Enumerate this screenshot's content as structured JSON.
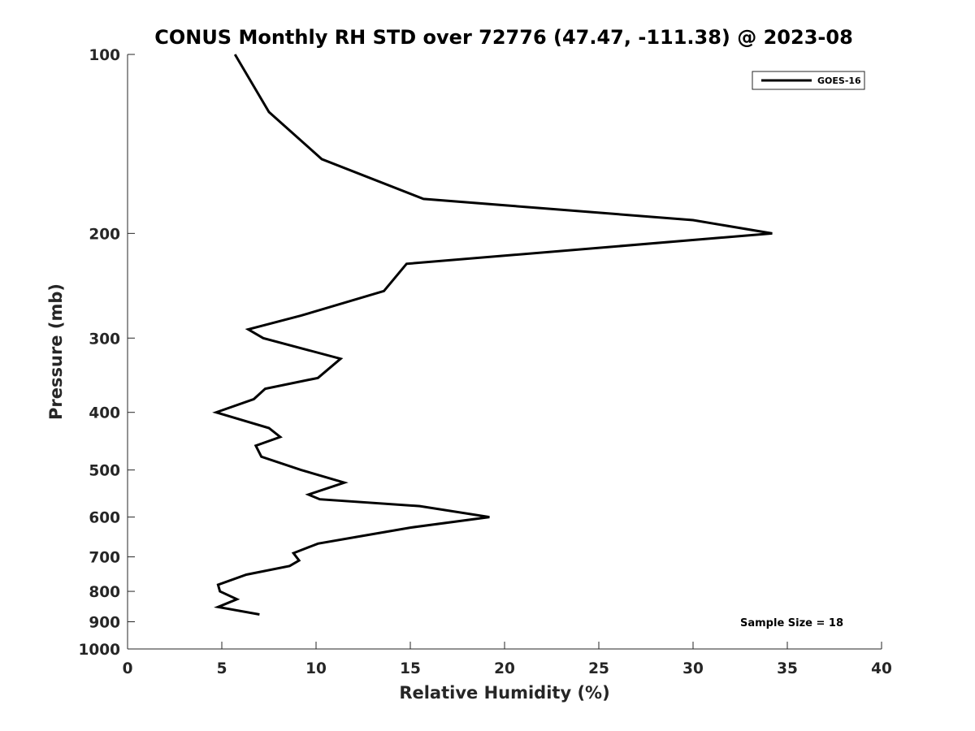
{
  "chart_data": {
    "type": "line",
    "title": "CONUS Monthly RH STD over 72776 (47.47, -111.38) @ 2023-08",
    "xlabel": "Relative Humidity (%)",
    "ylabel": "Pressure (mb)",
    "xlim": [
      0,
      40
    ],
    "ylim": [
      100,
      1000
    ],
    "yscale": "log",
    "y_reversed": true,
    "grid": false,
    "legend_position": "top-right",
    "xticks": [
      0,
      5,
      10,
      15,
      20,
      25,
      30,
      35,
      40
    ],
    "xtick_labels": [
      "0",
      "5",
      "10",
      "15",
      "20",
      "25",
      "30",
      "35",
      "40"
    ],
    "yticks": [
      100,
      200,
      300,
      400,
      500,
      600,
      700,
      800,
      900,
      1000
    ],
    "ytick_labels": [
      "100",
      "200",
      "300",
      "400",
      "500",
      "600",
      "700",
      "800",
      "900",
      "1000"
    ],
    "series": [
      {
        "name": "GOES-16",
        "color": "#000000",
        "points": [
          {
            "x": 5.7,
            "y": 100
          },
          {
            "x": 7.5,
            "y": 125
          },
          {
            "x": 10.3,
            "y": 150
          },
          {
            "x": 15.7,
            "y": 175
          },
          {
            "x": 30.0,
            "y": 190
          },
          {
            "x": 34.2,
            "y": 200
          },
          {
            "x": 14.8,
            "y": 225
          },
          {
            "x": 13.6,
            "y": 250
          },
          {
            "x": 9.2,
            "y": 275
          },
          {
            "x": 6.4,
            "y": 290
          },
          {
            "x": 7.2,
            "y": 300
          },
          {
            "x": 11.3,
            "y": 325
          },
          {
            "x": 10.1,
            "y": 350
          },
          {
            "x": 7.3,
            "y": 365
          },
          {
            "x": 6.7,
            "y": 380
          },
          {
            "x": 4.7,
            "y": 400
          },
          {
            "x": 7.5,
            "y": 425
          },
          {
            "x": 8.1,
            "y": 440
          },
          {
            "x": 6.8,
            "y": 455
          },
          {
            "x": 7.1,
            "y": 475
          },
          {
            "x": 9.2,
            "y": 500
          },
          {
            "x": 11.5,
            "y": 525
          },
          {
            "x": 9.6,
            "y": 550
          },
          {
            "x": 10.2,
            "y": 560
          },
          {
            "x": 15.5,
            "y": 575
          },
          {
            "x": 19.2,
            "y": 600
          },
          {
            "x": 15.0,
            "y": 625
          },
          {
            "x": 12.5,
            "y": 645
          },
          {
            "x": 10.1,
            "y": 665
          },
          {
            "x": 8.8,
            "y": 690
          },
          {
            "x": 9.1,
            "y": 710
          },
          {
            "x": 8.6,
            "y": 725
          },
          {
            "x": 6.3,
            "y": 750
          },
          {
            "x": 4.8,
            "y": 780
          },
          {
            "x": 4.9,
            "y": 800
          },
          {
            "x": 5.8,
            "y": 825
          },
          {
            "x": 4.8,
            "y": 850
          },
          {
            "x": 7.0,
            "y": 875
          }
        ]
      }
    ],
    "annotations": [
      "Sample Size = 18"
    ]
  }
}
